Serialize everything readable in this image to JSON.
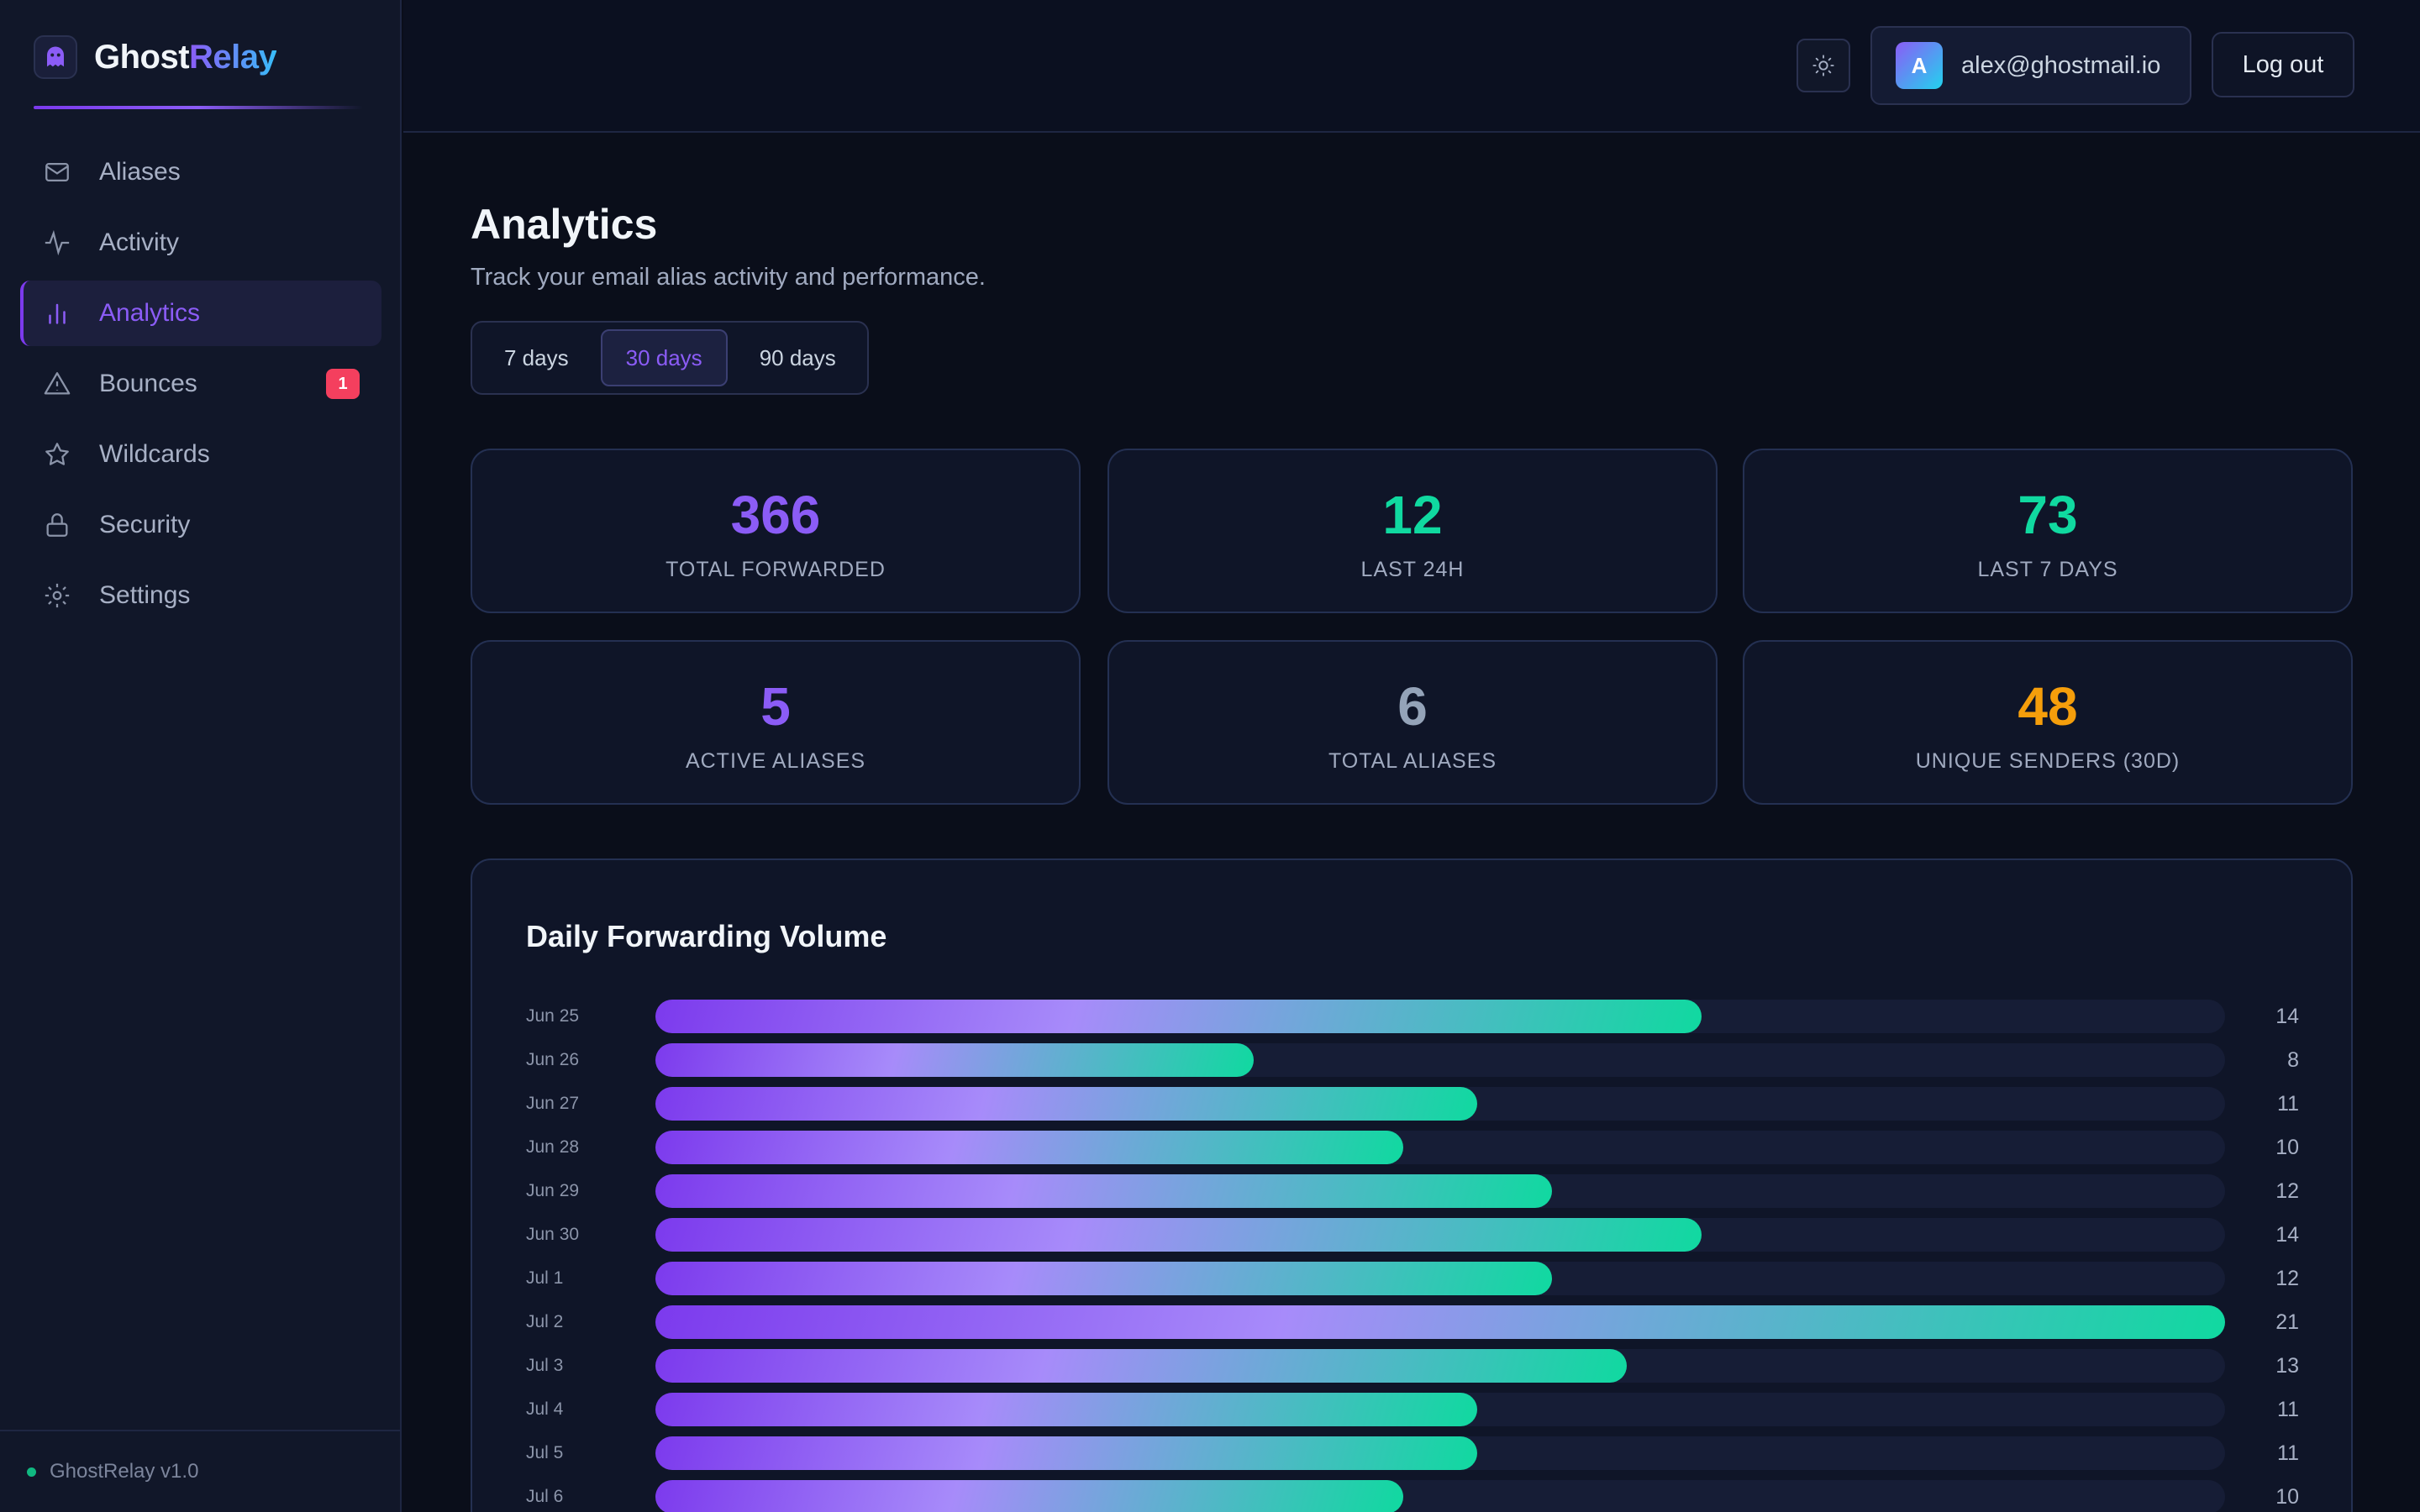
{
  "brand": {
    "name_part1": "Ghost",
    "name_part2": "Relay"
  },
  "sidebar": {
    "items": [
      {
        "label": "Aliases",
        "icon": "mail-icon"
      },
      {
        "label": "Activity",
        "icon": "activity-icon"
      },
      {
        "label": "Analytics",
        "icon": "bar-chart-icon",
        "active": true
      },
      {
        "label": "Bounces",
        "icon": "alert-triangle-icon",
        "badge": "1"
      },
      {
        "label": "Wildcards",
        "icon": "star-icon"
      },
      {
        "label": "Security",
        "icon": "lock-icon"
      },
      {
        "label": "Settings",
        "icon": "gear-icon"
      }
    ],
    "footer": "GhostRelay v1.0"
  },
  "header": {
    "theme_toggle_icon": "sun-icon",
    "user": {
      "initial": "A",
      "email": "alex@ghostmail.io"
    },
    "logout_label": "Log out"
  },
  "main": {
    "title": "Analytics",
    "subtitle": "Track your email alias activity and performance.",
    "ranges": [
      {
        "label": "7 days"
      },
      {
        "label": "30 days",
        "active": true
      },
      {
        "label": "90 days"
      }
    ],
    "stats": [
      {
        "value": "366",
        "label": "TOTAL FORWARDED",
        "color": "#8b5cf6"
      },
      {
        "value": "12",
        "label": "LAST 24H",
        "color": "#10d9a0"
      },
      {
        "value": "73",
        "label": "LAST 7 DAYS",
        "color": "#10d9a0"
      },
      {
        "value": "5",
        "label": "ACTIVE ALIASES",
        "color": "#8b5cf6"
      },
      {
        "value": "6",
        "label": "TOTAL ALIASES",
        "color": "#94a3b8"
      },
      {
        "value": "48",
        "label": "UNIQUE SENDERS (30D)",
        "color": "#f59e0b"
      }
    ]
  },
  "chart_data": {
    "type": "bar",
    "title": "Daily Forwarding Volume",
    "orientation": "horizontal",
    "categories": [
      "Jun 25",
      "Jun 26",
      "Jun 27",
      "Jun 28",
      "Jun 29",
      "Jun 30",
      "Jul 1",
      "Jul 2",
      "Jul 3",
      "Jul 4",
      "Jul 5",
      "Jul 6"
    ],
    "values": [
      14,
      8,
      11,
      10,
      12,
      14,
      12,
      21,
      13,
      11,
      11,
      10
    ],
    "xlim": [
      0,
      21
    ]
  }
}
